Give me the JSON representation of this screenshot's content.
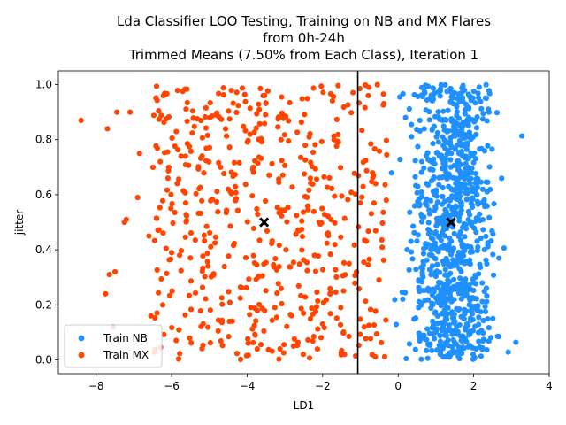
{
  "chart_data": {
    "type": "scatter",
    "title_lines": [
      "Lda Classifier LOO Testing, Training on NB and MX Flares",
      "from 0h-24h",
      "Trimmed Means (7.50% from Each Class), Iteration 1"
    ],
    "xlabel": "LD1",
    "ylabel": "jitter",
    "xlim": [
      -9.0,
      4.0
    ],
    "ylim": [
      -0.05,
      1.05
    ],
    "xticks": [
      -8,
      -6,
      -4,
      -2,
      0,
      2,
      4
    ],
    "yticks": [
      0.0,
      0.2,
      0.4,
      0.6,
      0.8,
      1.0
    ],
    "xtick_labels": [
      "−8",
      "−6",
      "−4",
      "−2",
      "0",
      "2",
      "4"
    ],
    "ytick_labels": [
      "0.0",
      "0.2",
      "0.4",
      "0.6",
      "0.8",
      "1.0"
    ],
    "decision_boundary_x": -1.07,
    "legend_position": "lower-left",
    "series": [
      {
        "name": "Train NB",
        "color": "#1e90ff",
        "count": 900,
        "dist": "normal",
        "center": 1.45,
        "sd": 0.55,
        "clip": [
          -0.75,
          3.45
        ],
        "mean_marker": [
          1.4,
          0.5
        ]
      },
      {
        "name": "Train MX",
        "color": "#ff4500",
        "count": 560,
        "dist": "uniform",
        "center": -3.6,
        "clip": [
          -6.5,
          -0.3
        ],
        "outliers": [
          [
            -8.4,
            0.87
          ],
          [
            -7.7,
            0.84
          ],
          [
            -7.45,
            0.9
          ],
          [
            -7.1,
            0.9
          ],
          [
            -7.25,
            0.5
          ],
          [
            -7.2,
            0.51
          ],
          [
            -7.65,
            0.31
          ],
          [
            -7.5,
            0.32
          ],
          [
            -7.75,
            0.24
          ],
          [
            -6.85,
            0.75
          ],
          [
            -6.6,
            0.45
          ],
          [
            -6.55,
            0.16
          ],
          [
            -7.55,
            0.12
          ],
          [
            -6.9,
            0.59
          ]
        ],
        "mean_marker": [
          -3.55,
          0.5
        ]
      }
    ],
    "mean_marker_color": "#000000"
  }
}
